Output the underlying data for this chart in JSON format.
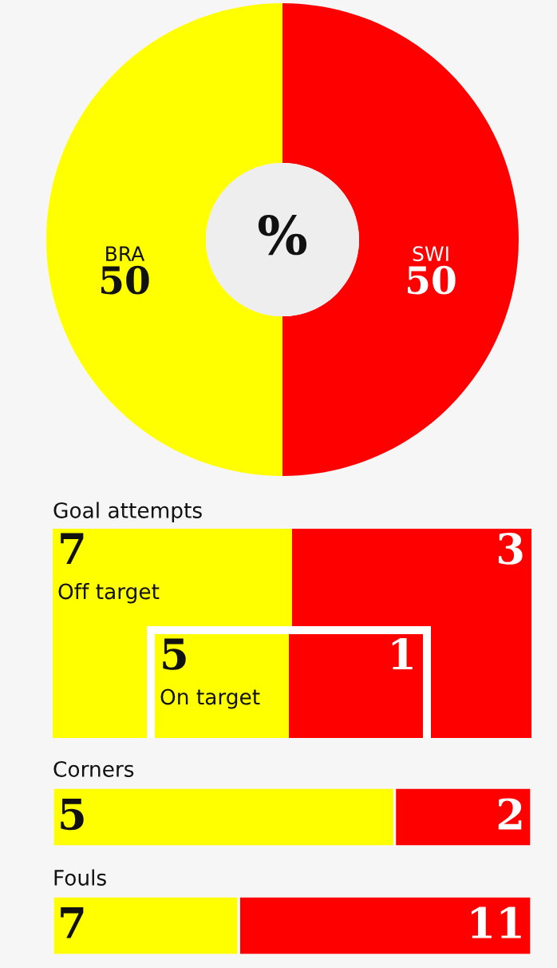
{
  "chart_data": [
    {
      "type": "donut",
      "categories": [
        "BRA",
        "SWI"
      ],
      "values": [
        50,
        50
      ],
      "colors": [
        "#ffff00",
        "#ff0000"
      ],
      "data_labels": true,
      "annotations": [
        "%"
      ]
    },
    {
      "type": "other",
      "title": "Goal attempts",
      "categories": [
        "Off target",
        "On target"
      ],
      "series": [
        {
          "color": "#ffff00",
          "values": [
            7,
            5
          ]
        },
        {
          "color": "#ff0000",
          "values": [
            3,
            1
          ]
        }
      ],
      "data_labels": true
    },
    {
      "type": "bar",
      "title": "Corners",
      "orientation": "horizontal",
      "stacked": true,
      "categories": [
        null
      ],
      "series": [
        {
          "color": "#ffff00",
          "values": [
            5
          ]
        },
        {
          "color": "#ff0000",
          "values": [
            2
          ]
        }
      ],
      "data_labels": true
    },
    {
      "type": "bar",
      "title": "Fouls",
      "orientation": "horizontal",
      "stacked": true,
      "categories": [
        null
      ],
      "series": [
        {
          "color": "#ffff00",
          "values": [
            7
          ]
        },
        {
          "color": "#ff0000",
          "values": [
            11
          ]
        }
      ],
      "data_labels": true
    }
  ]
}
